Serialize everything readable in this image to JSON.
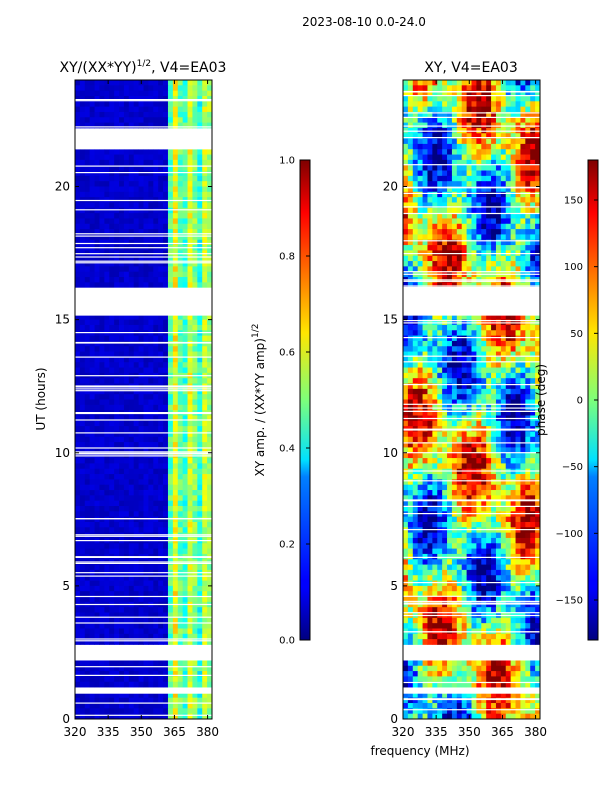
{
  "chart_data": {
    "type": "heatmap",
    "suptitle": "2023-08-10 0.0-24.0",
    "xlabel": "frequency (MHz)",
    "panels": [
      {
        "title_prefix": "XY/(XX*YY)",
        "title_sup": "1/2",
        "title_suffix": ", V4=EA03",
        "ylabel": "UT (hours)",
        "xlim": [
          320,
          382
        ],
        "ylim": [
          0,
          24
        ],
        "xticks": [
          "320",
          "335",
          "350",
          "365",
          "380"
        ],
        "xtick_values": [
          320,
          335,
          350,
          365,
          380
        ],
        "yticks": [
          "0",
          "5",
          "10",
          "15",
          "20"
        ],
        "ytick_values": [
          0,
          5,
          10,
          15,
          20
        ],
        "colorbar": {
          "label_prefix": "XY amp. / (XX*YY amp)",
          "label_sup": "1/2",
          "range": [
            0.0,
            1.0
          ],
          "ticks": [
            "0.0",
            "0.2",
            "0.4",
            "0.6",
            "0.8",
            "1.0"
          ],
          "tick_values": [
            0.0,
            0.2,
            0.4,
            0.6,
            0.8,
            1.0
          ]
        },
        "data_gaps_hours": [
          [
            0.95,
            1.15
          ],
          [
            2.2,
            2.75
          ],
          [
            15.15,
            16.2
          ],
          [
            21.5,
            22.1
          ]
        ]
      },
      {
        "title": "XY, V4=EA03",
        "xlim": [
          320,
          382
        ],
        "ylim": [
          0,
          24
        ],
        "xticks": [
          "320",
          "335",
          "350",
          "365",
          "380"
        ],
        "xtick_values": [
          320,
          335,
          350,
          365,
          380
        ],
        "yticks": [
          "0",
          "5",
          "10",
          "15",
          "20"
        ],
        "ytick_values": [
          0,
          5,
          10,
          15,
          20
        ],
        "colorbar": {
          "label": "phase (deg)",
          "range": [
            -180,
            180
          ],
          "ticks": [
            "−150",
            "−100",
            "−50",
            "0",
            "50",
            "100",
            "150"
          ],
          "tick_values": [
            -150,
            -100,
            -50,
            0,
            50,
            100,
            150
          ]
        },
        "data_gaps_hours": [
          [
            0.95,
            1.15
          ],
          [
            2.2,
            2.75
          ],
          [
            15.15,
            16.2
          ]
        ]
      }
    ]
  }
}
